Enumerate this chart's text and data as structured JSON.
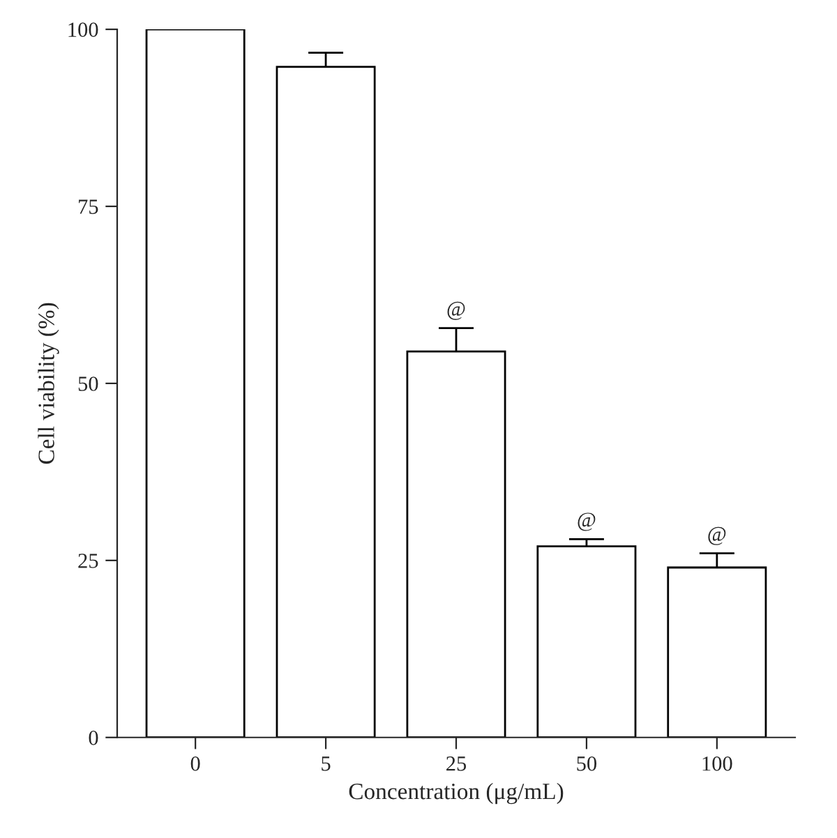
{
  "chart_data": {
    "type": "bar",
    "xlabel": "Concentration (μg/mL)",
    "ylabel": "Cell viability (%)",
    "categories": [
      "0",
      "5",
      "25",
      "50",
      "100"
    ],
    "values": [
      100,
      94.7,
      54.5,
      27,
      24
    ],
    "errors": [
      null,
      2,
      3.3,
      1,
      2
    ],
    "color": "#ffffff",
    "ylim": [
      0,
      100
    ],
    "yticks": [
      0,
      25,
      50,
      75,
      100
    ],
    "grid": false,
    "annotations": [
      {
        "text": "@",
        "x": "25",
        "y": 57.8
      },
      {
        "text": "@",
        "x": "50",
        "y": 28
      },
      {
        "text": "@",
        "x": "100",
        "y": 26
      }
    ]
  }
}
